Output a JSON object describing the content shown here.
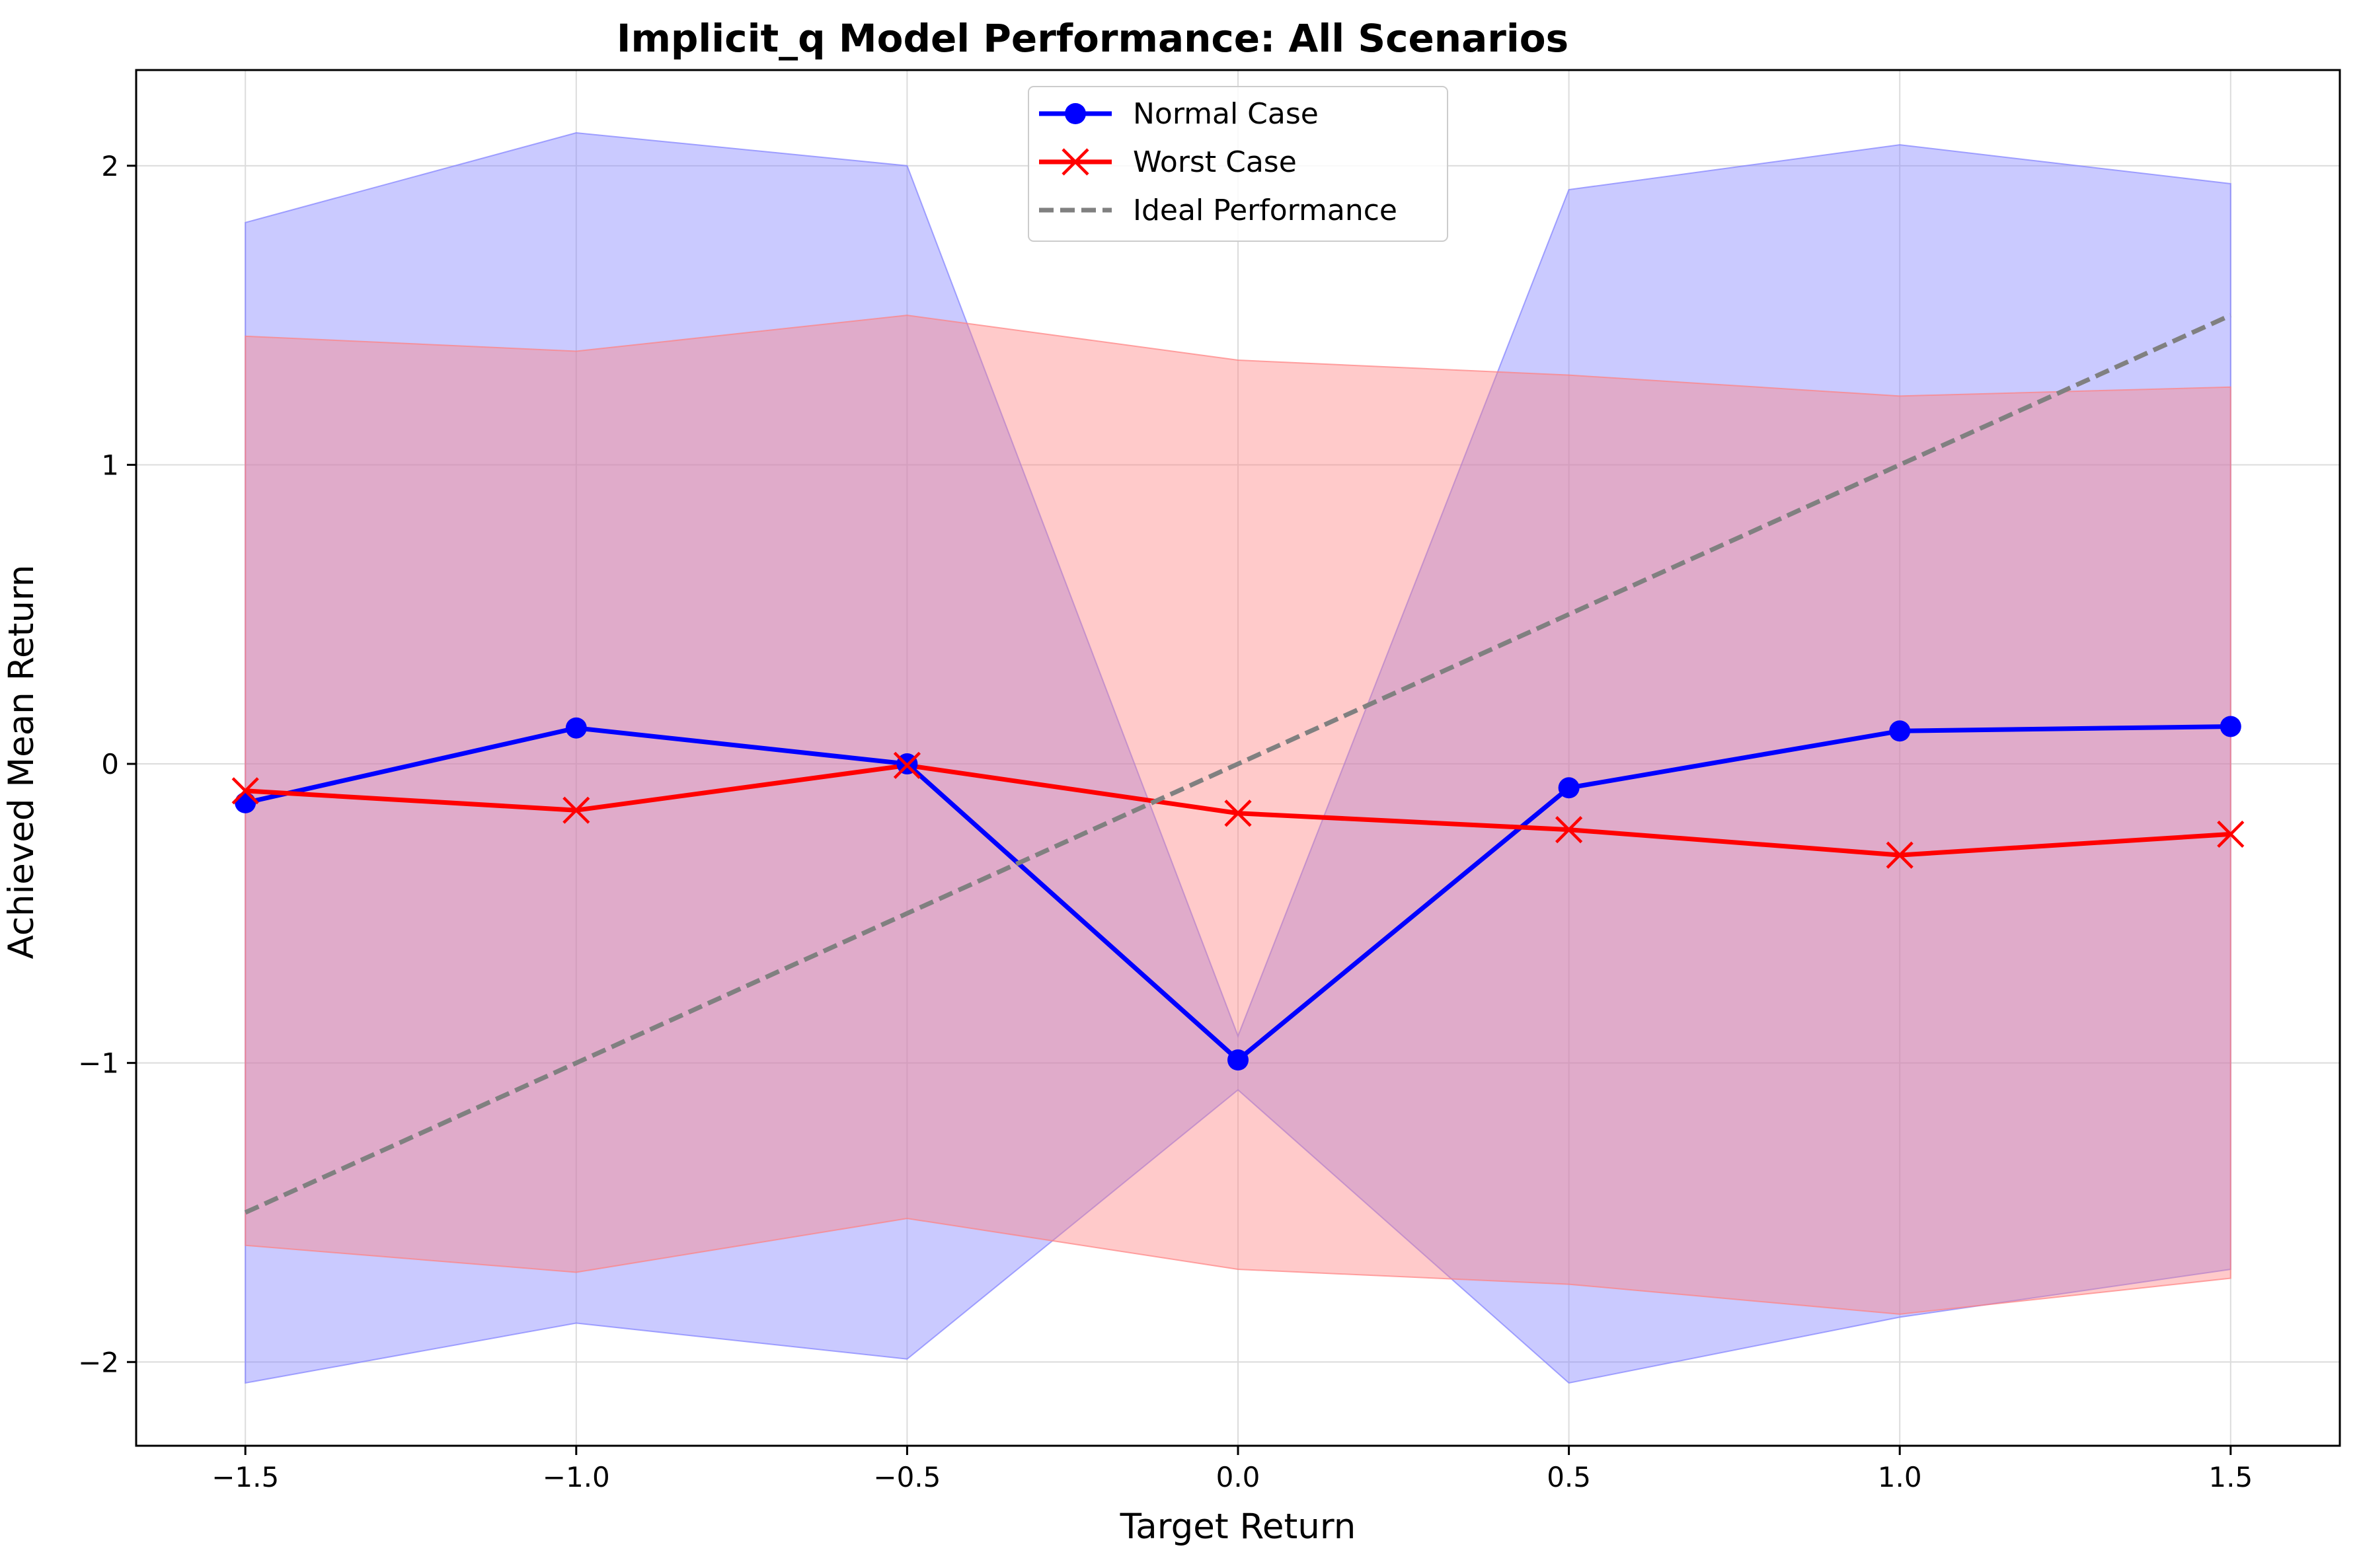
{
  "chart_data": {
    "type": "line",
    "title": "Implicit_q Model Performance: All Scenarios",
    "xlabel": "Target Return",
    "ylabel": "Achieved Mean Return",
    "xlim": [
      -1.665,
      1.665
    ],
    "ylim": [
      -2.28,
      2.32
    ],
    "grid": true,
    "legend_position": "top-center",
    "x": [
      -1.5,
      -1.0,
      -0.5,
      0.0,
      0.5,
      1.0,
      1.5
    ],
    "x_tick_labels": [
      "−1.5",
      "−1.0",
      "−0.5",
      "0.0",
      "0.5",
      "1.0",
      "1.5"
    ],
    "y_ticks": [
      -2,
      -1,
      0,
      1,
      2
    ],
    "y_tick_labels": [
      "−2",
      "−1",
      "0",
      "1",
      "2"
    ],
    "series": [
      {
        "name": "Normal Case",
        "color": "#0000ff",
        "marker": "circle",
        "values": [
          -0.13,
          0.12,
          0.0,
          -0.99,
          -0.08,
          0.11,
          0.125
        ],
        "band_upper": [
          1.81,
          2.11,
          2.0,
          -0.91,
          1.92,
          2.07,
          1.94
        ],
        "band_lower": [
          -2.07,
          -1.87,
          -1.99,
          -1.09,
          -2.07,
          -1.85,
          -1.69
        ],
        "band_color": "#8080ff"
      },
      {
        "name": "Worst Case",
        "color": "#ff0000",
        "marker": "x",
        "values": [
          -0.09,
          -0.155,
          -0.005,
          -0.165,
          -0.22,
          -0.305,
          -0.235
        ],
        "band_upper": [
          1.43,
          1.38,
          1.5,
          1.35,
          1.3,
          1.23,
          1.26
        ],
        "band_lower": [
          -1.61,
          -1.7,
          -1.52,
          -1.69,
          -1.74,
          -1.84,
          -1.72
        ],
        "band_color": "#ff8080"
      },
      {
        "name": "Ideal Performance",
        "color": "#808080",
        "marker": "none",
        "dashed": true,
        "values": [
          -1.5,
          -1.0,
          -0.5,
          0.0,
          0.5,
          1.0,
          1.5
        ]
      }
    ]
  }
}
